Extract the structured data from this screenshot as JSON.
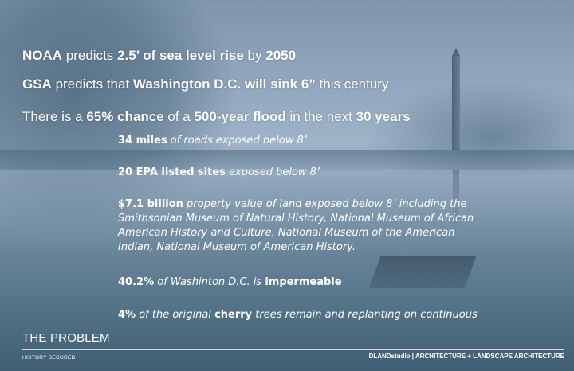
{
  "headlines": [
    {
      "parts": [
        {
          "t": "NOAA",
          "b": true
        },
        {
          "t": " predicts ",
          "b": false
        },
        {
          "t": "2.5’ of sea level rise",
          "b": true
        },
        {
          "t": " by ",
          "b": false
        },
        {
          "t": "2050",
          "b": true
        }
      ]
    },
    {
      "parts": [
        {
          "t": "GSA",
          "b": true
        },
        {
          "t": " predicts that ",
          "b": false
        },
        {
          "t": "Washington D.C. will sink 6”",
          "b": true
        },
        {
          "t": " this century",
          "b": false
        }
      ]
    },
    {
      "parts": [
        {
          "t": "There is a ",
          "b": false
        },
        {
          "t": "65% chance",
          "b": true
        },
        {
          "t": " of a ",
          "b": false
        },
        {
          "t": "500-year flood",
          "b": true
        },
        {
          "t": " in the next ",
          "b": false
        },
        {
          "t": "30 years",
          "b": true
        }
      ]
    }
  ],
  "facts": [
    {
      "lines": [
        [
          {
            "t": "34 miles",
            "b": true
          },
          {
            "t": " of roads exposed below 8’",
            "b": false
          }
        ]
      ]
    },
    {
      "lines": [
        [
          {
            "t": "20 EPA listed sites",
            "b": true
          },
          {
            "t": " exposed below 8’",
            "b": false
          }
        ]
      ]
    },
    {
      "lines": [
        [
          {
            "t": "$7.1 billion",
            "b": true
          },
          {
            "t": " property value of land exposed below 8’ including the",
            "b": false
          }
        ],
        [
          {
            "t": "Smithsonian Museum of Natural History, National Museum of African",
            "b": false
          }
        ],
        [
          {
            "t": "American History and Culture, National Museum of the American",
            "b": false
          }
        ],
        [
          {
            "t": "Indian, National Museum of American History.",
            "b": false
          }
        ]
      ]
    },
    {
      "lines": [
        [
          {
            "t": "40.2%",
            "b": true
          },
          {
            "t": " of Washinton D.C. is ",
            "b": false
          },
          {
            "t": "impermeable",
            "b": true
          }
        ]
      ]
    },
    {
      "lines": [
        [
          {
            "t": "4%",
            "b": true
          },
          {
            "t": " of the original ",
            "b": false
          },
          {
            "t": "cherry",
            "b": true
          },
          {
            "t": " trees remain and replanting on continuous",
            "b": false
          }
        ]
      ]
    }
  ],
  "footer": {
    "title": "THE PROBLEM",
    "left": "HISTORY SECURED",
    "right": "DLANDstudio | ARCHITECTURE + LANDSCAPE ARCHITECTURE"
  }
}
